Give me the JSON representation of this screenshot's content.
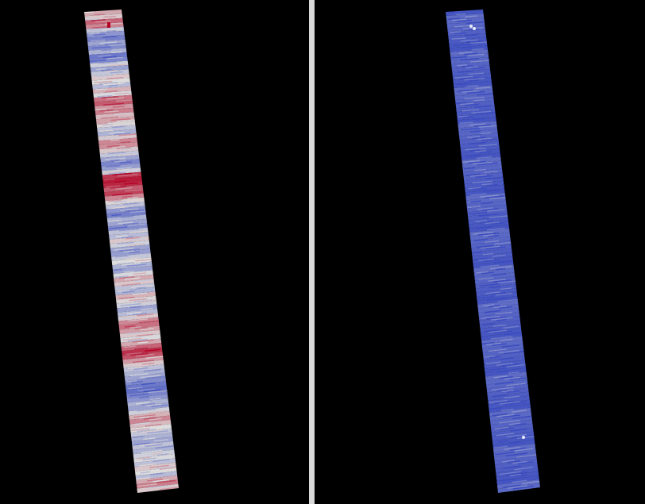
{
  "colors": {
    "background": "#000000",
    "divider": "#d8d8d8",
    "colormap_low": "#3b4cc0",
    "colormap_mid": "#dddddd",
    "colormap_high": "#b40426"
  },
  "panels": [
    {
      "name": "left-strip",
      "description_colormap": "coolwarm",
      "band_profile": [
        0.62,
        0.55,
        0.78,
        0.7,
        0.4,
        0.25,
        0.18,
        0.3,
        0.22,
        0.35,
        0.15,
        0.2,
        0.45,
        0.3,
        0.42,
        0.55,
        0.5,
        0.38,
        0.6,
        0.48,
        0.75,
        0.8,
        0.66,
        0.72,
        0.58,
        0.63,
        0.52,
        0.4,
        0.35,
        0.55,
        0.7,
        0.68,
        0.55,
        0.42,
        0.3,
        0.2,
        0.28,
        0.45,
        0.88,
        0.95,
        0.92,
        0.8,
        0.86,
        0.7,
        0.52,
        0.4,
        0.25,
        0.18,
        0.35,
        0.3,
        0.22,
        0.4,
        0.38,
        0.55,
        0.45,
        0.3,
        0.28,
        0.42,
        0.5,
        0.35,
        0.3,
        0.48,
        0.62,
        0.55,
        0.4,
        0.35,
        0.6,
        0.52,
        0.45,
        0.3,
        0.38,
        0.55,
        0.7,
        0.75,
        0.65,
        0.55,
        0.48,
        0.62,
        0.78,
        0.9,
        0.82,
        0.66,
        0.55,
        0.4,
        0.35,
        0.3,
        0.22,
        0.15,
        0.12,
        0.2,
        0.25,
        0.35,
        0.3,
        0.45,
        0.6,
        0.7,
        0.58,
        0.5,
        0.42,
        0.35,
        0.3,
        0.4,
        0.35,
        0.45,
        0.48,
        0.4,
        0.55,
        0.5,
        0.38,
        0.62,
        0.72,
        0.55
      ]
    },
    {
      "name": "right-strip",
      "description_colormap": "coolwarm",
      "band_profile": [
        0.05
      ]
    }
  ]
}
